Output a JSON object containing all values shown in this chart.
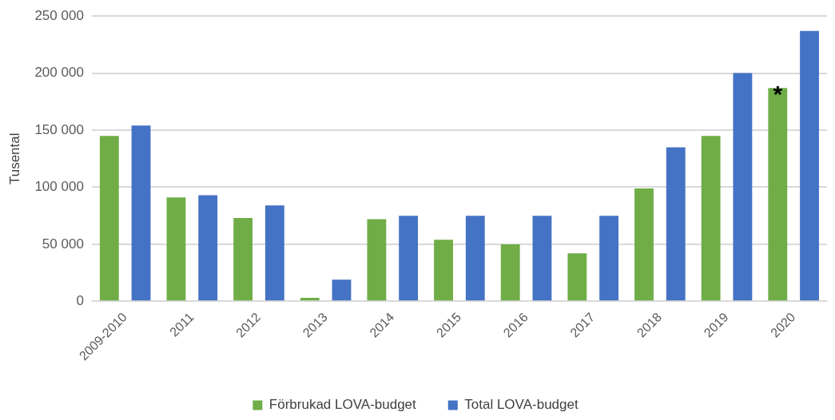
{
  "chart_data": {
    "type": "bar",
    "ylabel": "Tusental",
    "categories": [
      "2009-2010",
      "2011",
      "2012",
      "2013",
      "2014",
      "2015",
      "2016",
      "2017",
      "2018",
      "2019",
      "2020"
    ],
    "series": [
      {
        "name": "Förbrukad LOVA-budget",
        "color": "#70ad47",
        "values": [
          145000,
          91000,
          73000,
          3000,
          72000,
          54000,
          50000,
          42000,
          99000,
          145000,
          187000
        ]
      },
      {
        "name": "Total LOVA-budget",
        "color": "#4472c4",
        "values": [
          154000,
          93000,
          84000,
          19000,
          75000,
          75000,
          75000,
          75000,
          135000,
          200000,
          237000
        ]
      }
    ],
    "ylim": [
      0,
      250000
    ],
    "yticks": [
      {
        "value": 0,
        "label": "0"
      },
      {
        "value": 50000,
        "label": "50 000"
      },
      {
        "value": 100000,
        "label": "100 000"
      },
      {
        "value": 150000,
        "label": "150 000"
      },
      {
        "value": 200000,
        "label": "200 000"
      },
      {
        "value": 250000,
        "label": "250 000"
      }
    ],
    "grid": "y",
    "legend": "bottom",
    "annotations": [
      {
        "text": "*",
        "x": "2020",
        "y": 187000
      }
    ]
  }
}
